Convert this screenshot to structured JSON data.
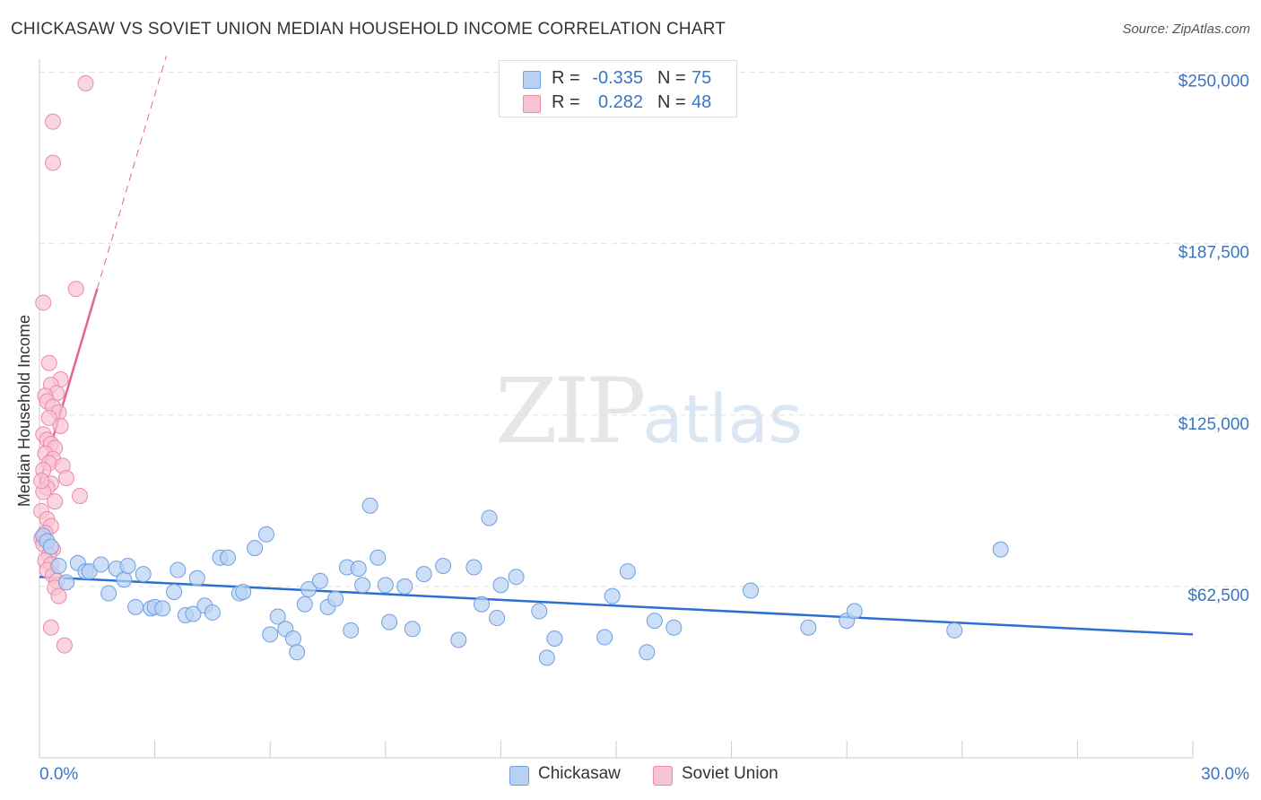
{
  "header": {
    "title": "CHICKASAW VS SOVIET UNION MEDIAN HOUSEHOLD INCOME CORRELATION CHART",
    "source": "Source: ZipAtlas.com"
  },
  "legend": {
    "rows": [
      {
        "r_label": "R =",
        "r_value": "-0.335",
        "n_label": "N =",
        "n_value": "75"
      },
      {
        "r_label": "R =",
        "r_value": "0.282",
        "n_label": "N =",
        "n_value": "48"
      }
    ],
    "series": [
      {
        "name": "Chickasaw"
      },
      {
        "name": "Soviet Union"
      }
    ]
  },
  "watermark": {
    "zip": "ZIP",
    "atlas": "atlas"
  },
  "colors": {
    "chickasaw_fill": "#b8d1f3",
    "chickasaw_stroke": "#6e9fe0",
    "chickasaw_line": "#2b6fcf",
    "soviet_fill": "#f8c3d3",
    "soviet_stroke": "#eb8aaa",
    "soviet_line": "#e2668f",
    "axis_label": "#3a75c4",
    "grid": "#e0e0e0"
  },
  "chart_data": {
    "type": "scatter",
    "title": "CHICKASAW VS SOVIET UNION MEDIAN HOUSEHOLD INCOME CORRELATION CHART",
    "xlabel": "",
    "ylabel": "Median Household Income",
    "xlim": [
      0,
      30
    ],
    "ylim": [
      0,
      262000
    ],
    "x_tick_labels": [
      "0.0%",
      "30.0%"
    ],
    "y_ticks": [
      62500,
      125000,
      187500,
      250000
    ],
    "y_tick_labels": [
      "$62,500",
      "$125,000",
      "$187,500",
      "$250,000"
    ],
    "grid": "horizontal dashed",
    "series": [
      {
        "name": "Chickasaw",
        "r": -0.335,
        "n": 75,
        "trend": {
          "x": [
            0.0,
            30.0
          ],
          "y": [
            66000,
            45000
          ]
        },
        "points": [
          {
            "x": 0.1,
            "y": 81000
          },
          {
            "x": 0.2,
            "y": 79000
          },
          {
            "x": 0.3,
            "y": 77000
          },
          {
            "x": 0.5,
            "y": 70000
          },
          {
            "x": 0.7,
            "y": 64000
          },
          {
            "x": 1.0,
            "y": 71000
          },
          {
            "x": 1.2,
            "y": 68000
          },
          {
            "x": 1.3,
            "y": 68000
          },
          {
            "x": 1.6,
            "y": 70500
          },
          {
            "x": 1.8,
            "y": 60000
          },
          {
            "x": 2.0,
            "y": 69000
          },
          {
            "x": 2.2,
            "y": 65000
          },
          {
            "x": 2.3,
            "y": 70000
          },
          {
            "x": 2.5,
            "y": 55000
          },
          {
            "x": 2.7,
            "y": 67000
          },
          {
            "x": 2.9,
            "y": 54500
          },
          {
            "x": 3.0,
            "y": 55000
          },
          {
            "x": 3.2,
            "y": 54500
          },
          {
            "x": 3.5,
            "y": 60500
          },
          {
            "x": 3.6,
            "y": 68500
          },
          {
            "x": 3.8,
            "y": 52000
          },
          {
            "x": 4.0,
            "y": 52500
          },
          {
            "x": 4.1,
            "y": 65500
          },
          {
            "x": 4.3,
            "y": 55500
          },
          {
            "x": 4.5,
            "y": 53000
          },
          {
            "x": 4.7,
            "y": 73000
          },
          {
            "x": 4.9,
            "y": 73000
          },
          {
            "x": 5.2,
            "y": 60000
          },
          {
            "x": 5.3,
            "y": 60500
          },
          {
            "x": 5.6,
            "y": 76500
          },
          {
            "x": 5.9,
            "y": 81500
          },
          {
            "x": 6.0,
            "y": 45000
          },
          {
            "x": 6.2,
            "y": 51500
          },
          {
            "x": 6.4,
            "y": 47000
          },
          {
            "x": 6.6,
            "y": 43500
          },
          {
            "x": 6.7,
            "y": 38500
          },
          {
            "x": 6.9,
            "y": 56000
          },
          {
            "x": 7.0,
            "y": 61500
          },
          {
            "x": 7.3,
            "y": 64500
          },
          {
            "x": 7.5,
            "y": 55000
          },
          {
            "x": 7.7,
            "y": 58000
          },
          {
            "x": 8.0,
            "y": 69500
          },
          {
            "x": 8.1,
            "y": 46500
          },
          {
            "x": 8.3,
            "y": 69000
          },
          {
            "x": 8.4,
            "y": 63000
          },
          {
            "x": 8.6,
            "y": 92000
          },
          {
            "x": 8.8,
            "y": 73000
          },
          {
            "x": 9.0,
            "y": 63000
          },
          {
            "x": 9.1,
            "y": 49500
          },
          {
            "x": 9.5,
            "y": 62500
          },
          {
            "x": 9.7,
            "y": 47000
          },
          {
            "x": 10.0,
            "y": 67000
          },
          {
            "x": 10.5,
            "y": 70000
          },
          {
            "x": 10.9,
            "y": 43000
          },
          {
            "x": 11.3,
            "y": 69500
          },
          {
            "x": 11.5,
            "y": 56000
          },
          {
            "x": 11.7,
            "y": 87500
          },
          {
            "x": 11.9,
            "y": 51000
          },
          {
            "x": 12.0,
            "y": 63000
          },
          {
            "x": 12.4,
            "y": 66000
          },
          {
            "x": 13.0,
            "y": 53500
          },
          {
            "x": 13.2,
            "y": 36500
          },
          {
            "x": 13.4,
            "y": 43500
          },
          {
            "x": 14.7,
            "y": 44000
          },
          {
            "x": 14.9,
            "y": 59000
          },
          {
            "x": 15.3,
            "y": 68000
          },
          {
            "x": 15.8,
            "y": 38500
          },
          {
            "x": 16.0,
            "y": 50000
          },
          {
            "x": 16.5,
            "y": 47500
          },
          {
            "x": 18.5,
            "y": 61000
          },
          {
            "x": 20.0,
            "y": 47500
          },
          {
            "x": 21.0,
            "y": 50000
          },
          {
            "x": 21.2,
            "y": 53500
          },
          {
            "x": 23.8,
            "y": 46500
          },
          {
            "x": 25.0,
            "y": 76000
          }
        ]
      },
      {
        "name": "Soviet Union",
        "r": 0.282,
        "n": 48,
        "trend": {
          "x": [
            0.0,
            1.5
          ],
          "y": [
            100000,
            171000
          ]
        },
        "trend_extension": {
          "x": [
            1.5,
            3.3
          ],
          "y": [
            171000,
            256000
          ]
        },
        "points": [
          {
            "x": 1.2,
            "y": 246000
          },
          {
            "x": 0.35,
            "y": 232000
          },
          {
            "x": 0.35,
            "y": 217000
          },
          {
            "x": 0.1,
            "y": 166000
          },
          {
            "x": 0.95,
            "y": 171000
          },
          {
            "x": 0.25,
            "y": 144000
          },
          {
            "x": 0.55,
            "y": 138000
          },
          {
            "x": 0.3,
            "y": 136000
          },
          {
            "x": 0.45,
            "y": 133000
          },
          {
            "x": 0.15,
            "y": 132000
          },
          {
            "x": 0.2,
            "y": 130000
          },
          {
            "x": 0.35,
            "y": 128000
          },
          {
            "x": 0.5,
            "y": 126000
          },
          {
            "x": 0.25,
            "y": 124000
          },
          {
            "x": 0.55,
            "y": 121000
          },
          {
            "x": 0.1,
            "y": 118000
          },
          {
            "x": 0.2,
            "y": 116000
          },
          {
            "x": 0.3,
            "y": 114500
          },
          {
            "x": 0.4,
            "y": 113000
          },
          {
            "x": 0.15,
            "y": 111000
          },
          {
            "x": 0.35,
            "y": 109000
          },
          {
            "x": 0.25,
            "y": 107500
          },
          {
            "x": 0.6,
            "y": 106500
          },
          {
            "x": 0.1,
            "y": 105000
          },
          {
            "x": 0.7,
            "y": 102000
          },
          {
            "x": 0.3,
            "y": 100000
          },
          {
            "x": 0.2,
            "y": 98500
          },
          {
            "x": 0.1,
            "y": 97000
          },
          {
            "x": 1.05,
            "y": 95500
          },
          {
            "x": 0.4,
            "y": 93500
          },
          {
            "x": 0.05,
            "y": 90000
          },
          {
            "x": 0.2,
            "y": 87000
          },
          {
            "x": 0.3,
            "y": 84500
          },
          {
            "x": 0.15,
            "y": 82000
          },
          {
            "x": 0.05,
            "y": 80000
          },
          {
            "x": 0.1,
            "y": 78000
          },
          {
            "x": 0.35,
            "y": 76000
          },
          {
            "x": 0.25,
            "y": 74000
          },
          {
            "x": 0.15,
            "y": 72000
          },
          {
            "x": 0.3,
            "y": 70500
          },
          {
            "x": 0.2,
            "y": 68500
          },
          {
            "x": 0.35,
            "y": 66500
          },
          {
            "x": 0.45,
            "y": 64500
          },
          {
            "x": 0.4,
            "y": 62000
          },
          {
            "x": 0.5,
            "y": 59000
          },
          {
            "x": 0.3,
            "y": 47500
          },
          {
            "x": 0.65,
            "y": 41000
          },
          {
            "x": 0.05,
            "y": 101000
          }
        ]
      }
    ]
  }
}
